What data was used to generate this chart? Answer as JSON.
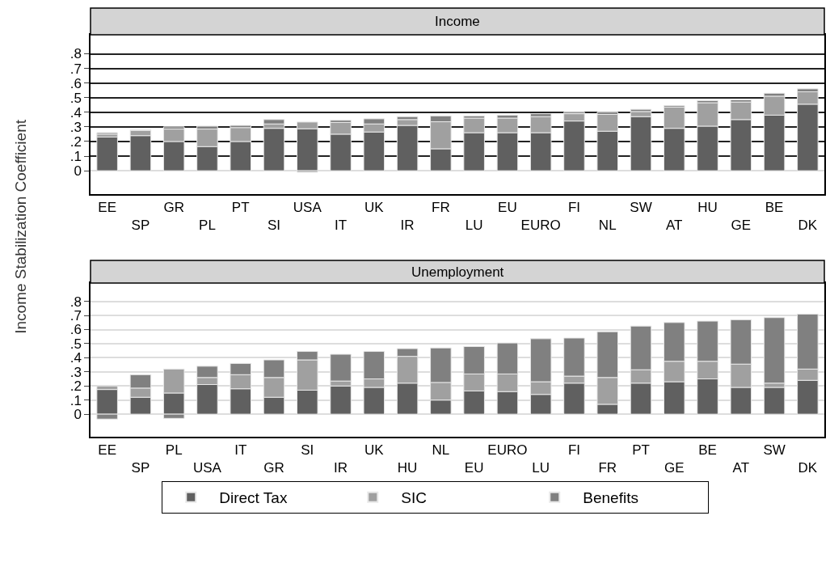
{
  "chart_data": [
    {
      "type": "bar",
      "title": "Income",
      "ylabel": "Income Stabilization Coefficient",
      "stacked": true,
      "grid": "y",
      "legend": "bottom",
      "categories": [
        "EE",
        "SP",
        "GR",
        "PL",
        "PT",
        "SI",
        "USA",
        "IT",
        "UK",
        "IR",
        "FR",
        "LU",
        "EU",
        "EURO",
        "FI",
        "NL",
        "SW",
        "AT",
        "HU",
        "GE",
        "BE",
        "DK"
      ],
      "ylim": [
        -0.16,
        0.93
      ],
      "yticks": [
        0,
        {
          "value": 0.1,
          "label": ".1"
        },
        {
          "value": 0.2,
          "label": ".2"
        },
        {
          "value": 0.3,
          "label": ".3"
        },
        {
          "value": 0.4,
          "label": ".4"
        },
        {
          "value": 0.5,
          "label": ".5"
        },
        {
          "value": 0.6,
          "label": ".6"
        },
        {
          "value": 0.7,
          "label": ".7"
        },
        {
          "value": 0.8,
          "label": ".8"
        }
      ],
      "series": [
        {
          "name": "Direct Tax",
          "color": "#606060",
          "values": [
            0.23,
            0.24,
            0.2,
            0.165,
            0.2,
            0.29,
            0.287,
            0.25,
            0.265,
            0.31,
            0.15,
            0.26,
            0.26,
            0.26,
            0.34,
            0.27,
            0.37,
            0.29,
            0.305,
            0.35,
            0.38,
            0.455
          ]
        },
        {
          "name": "SIC",
          "color": "#a0a0a0",
          "values": [
            0.02,
            0.035,
            0.085,
            0.12,
            0.095,
            0.03,
            0.046,
            0.08,
            0.055,
            0.04,
            0.185,
            0.1,
            0.1,
            0.11,
            0.05,
            0.115,
            0.035,
            0.145,
            0.16,
            0.12,
            0.13,
            0.085
          ]
        },
        {
          "name": "Benefits",
          "color": "#808080",
          "values": [
            0.01,
            0.005,
            0.015,
            0.02,
            0.015,
            0.03,
            -0.01,
            0.015,
            0.035,
            0.02,
            0.04,
            0.015,
            0.02,
            0.02,
            0.01,
            0.015,
            0.015,
            0.01,
            0.015,
            0.015,
            0.02,
            0.02
          ]
        }
      ]
    },
    {
      "type": "bar",
      "title": "Unemployment",
      "stacked": true,
      "grid": "y",
      "legend": "bottom",
      "categories": [
        "EE",
        "SP",
        "PL",
        "USA",
        "IT",
        "GR",
        "SI",
        "IR",
        "UK",
        "HU",
        "NL",
        "EU",
        "EURO",
        "LU",
        "FI",
        "FR",
        "PT",
        "GE",
        "BE",
        "AT",
        "SW",
        "DK"
      ],
      "ylim": [
        -0.16,
        0.93
      ],
      "yticks": [
        0,
        {
          "value": 0.1,
          "label": ".1"
        },
        {
          "value": 0.2,
          "label": ".2"
        },
        {
          "value": 0.3,
          "label": ".3"
        },
        {
          "value": 0.4,
          "label": ".4"
        },
        {
          "value": 0.5,
          "label": ".5"
        },
        {
          "value": 0.6,
          "label": ".6"
        },
        {
          "value": 0.7,
          "label": ".7"
        },
        {
          "value": 0.8,
          "label": ".8"
        }
      ],
      "series": [
        {
          "name": "Direct Tax",
          "color": "#606060",
          "values": [
            0.175,
            0.12,
            0.15,
            0.21,
            0.18,
            0.12,
            0.17,
            0.2,
            0.19,
            0.22,
            0.1,
            0.165,
            0.16,
            0.14,
            0.22,
            0.07,
            0.22,
            0.23,
            0.25,
            0.19,
            0.19,
            0.24
          ]
        },
        {
          "name": "SIC",
          "color": "#a0a0a0",
          "values": [
            0.025,
            0.065,
            0.17,
            0.05,
            0.1,
            0.14,
            0.215,
            0.035,
            0.06,
            0.19,
            0.125,
            0.12,
            0.125,
            0.09,
            0.05,
            0.19,
            0.095,
            0.145,
            0.125,
            0.165,
            0.03,
            0.08
          ]
        },
        {
          "name": "Benefits",
          "color": "#808080",
          "values": [
            -0.035,
            0.095,
            -0.03,
            0.08,
            0.08,
            0.125,
            0.06,
            0.19,
            0.195,
            0.055,
            0.245,
            0.195,
            0.22,
            0.305,
            0.27,
            0.325,
            0.31,
            0.275,
            0.285,
            0.315,
            0.465,
            0.39
          ]
        }
      ]
    }
  ]
}
